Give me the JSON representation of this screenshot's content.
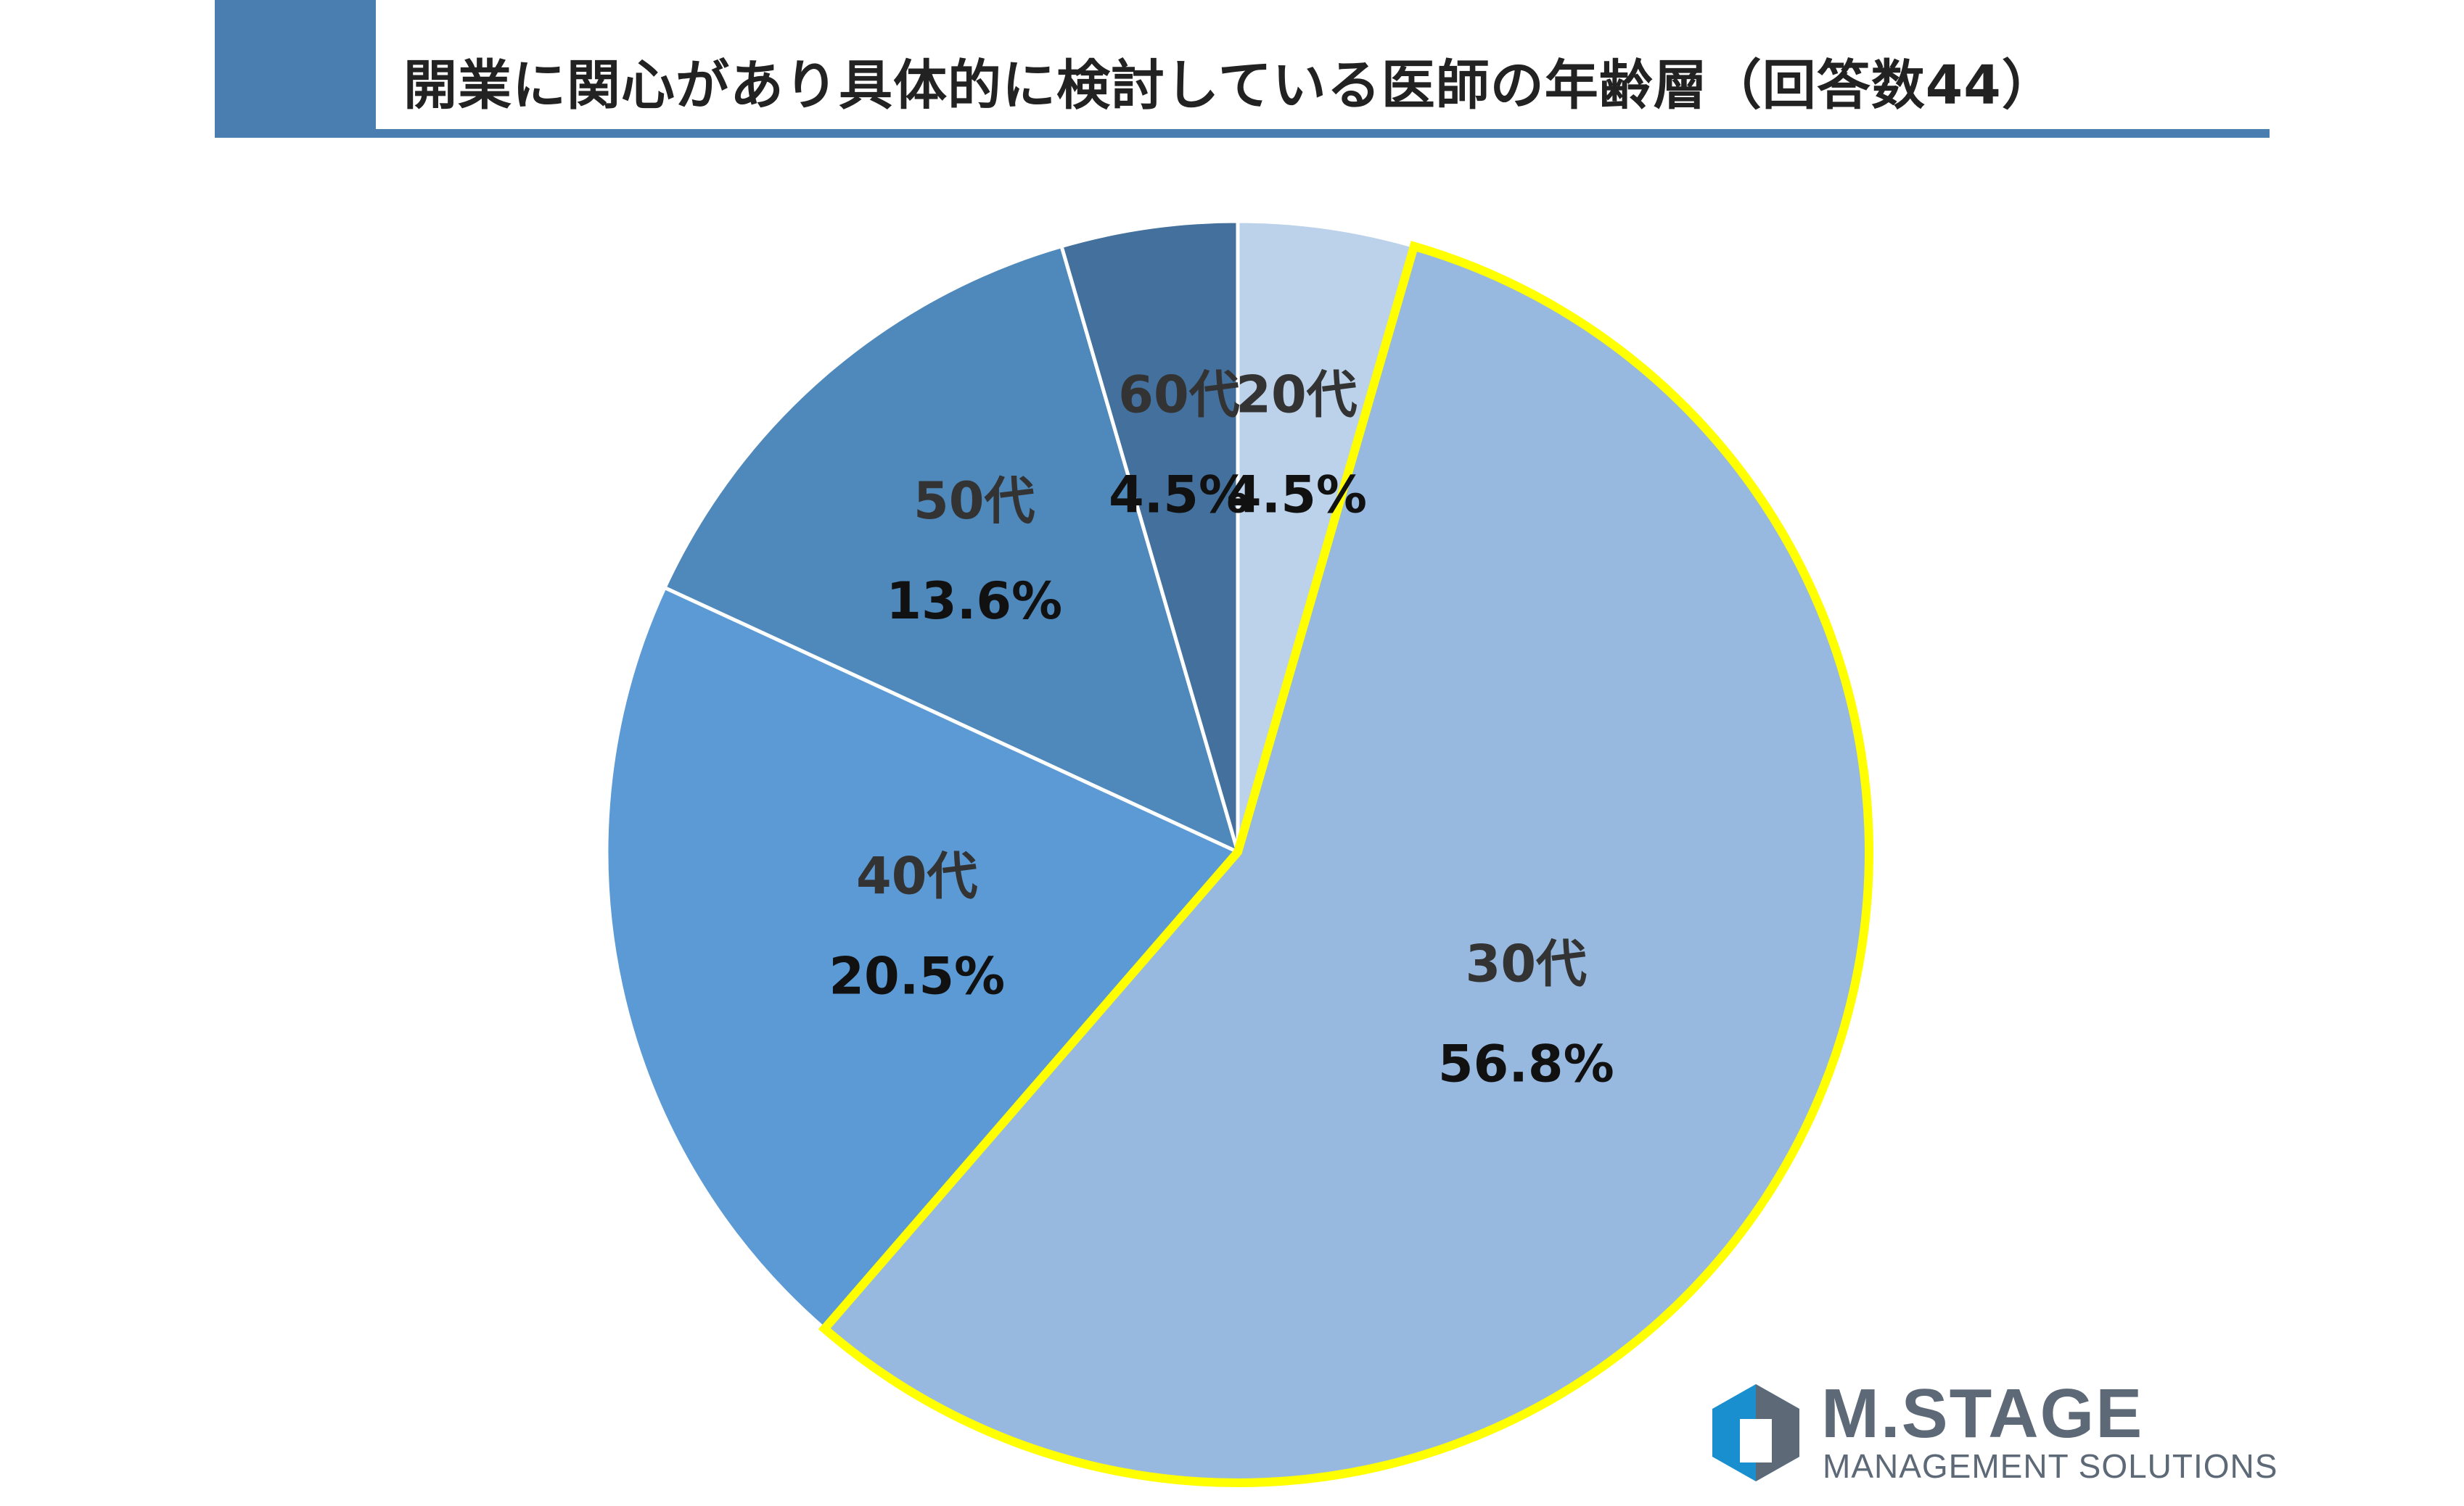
{
  "header": {
    "title": "開業に関心があり具体的に検討している医師の年齢層（回答数44）",
    "accent_color": "#4a7eb0"
  },
  "chart_data": {
    "type": "pie",
    "title": "開業に関心があり具体的に検討している医師の年齢層（回答数44）",
    "start": "12 o'clock",
    "direction": "clockwise",
    "slices": [
      {
        "label": "20代",
        "value": 4.5,
        "value_label": "4.5%",
        "color": "#bcd1ea",
        "highlighted": false
      },
      {
        "label": "30代",
        "value": 56.8,
        "value_label": "56.8%",
        "color": "#97b8df",
        "highlighted": true
      },
      {
        "label": "40代",
        "value": 20.5,
        "value_label": "20.5%",
        "color": "#5b9ad5",
        "highlighted": false
      },
      {
        "label": "50代",
        "value": 13.6,
        "value_label": "13.6%",
        "color": "#4f88ba",
        "highlighted": false
      },
      {
        "label": "60代",
        "value": 4.5,
        "value_label": "4.5%",
        "color": "#43709c",
        "highlighted": false
      }
    ],
    "highlight_color": "#ffff00",
    "separator_color": "#ffffff"
  },
  "logo": {
    "name": "M.STAGE",
    "subtitle": "MANAGEMENT SOLUTIONS",
    "icon": "hexagon-logo-icon",
    "colors": [
      "#1a8fd0",
      "#5d6977"
    ]
  }
}
